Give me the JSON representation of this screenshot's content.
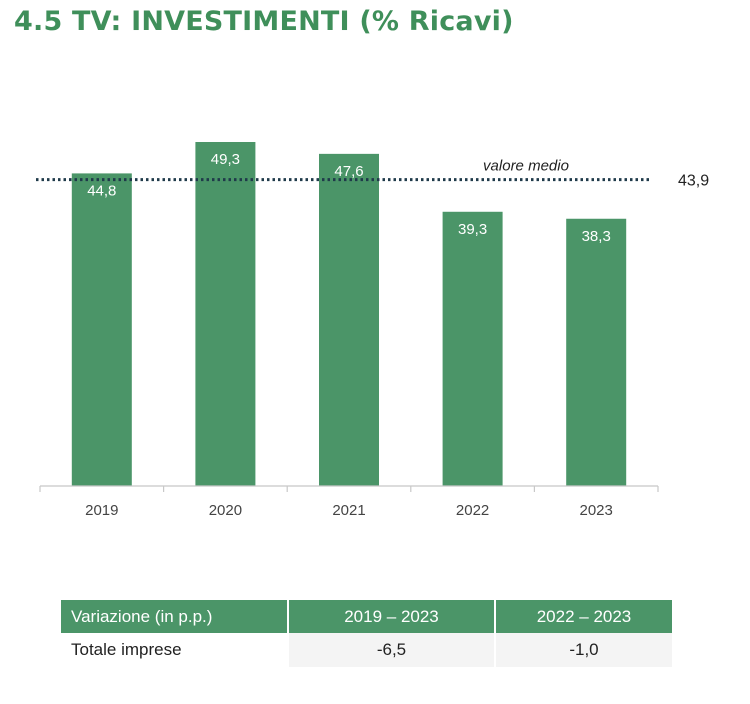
{
  "title": "4.5 TV: INVESTIMENTI (% Ricavi)",
  "colors": {
    "bar": "#4b9568",
    "title": "#3f8f5a",
    "header": "#4b9568"
  },
  "chart_data": {
    "type": "bar",
    "categories": [
      "2019",
      "2020",
      "2021",
      "2022",
      "2023"
    ],
    "values": [
      44.8,
      49.3,
      47.6,
      39.3,
      38.3
    ],
    "value_labels": [
      "44,8",
      "49,3",
      "47,6",
      "39,3",
      "38,3"
    ],
    "reference_line": {
      "label": "valore medio",
      "value": 43.9,
      "value_label": "43,9",
      "style": "dotted"
    },
    "ylim": [
      0,
      50
    ],
    "grid": false,
    "title": "4.5 TV: INVESTIMENTI (% Ricavi)",
    "xlabel": "",
    "ylabel": ""
  },
  "table": {
    "headers": [
      "Variazione (in p.p.)",
      "2019 – 2023",
      "2022 – 2023"
    ],
    "rows": [
      {
        "label": "Totale imprese",
        "values": [
          "-6,5",
          "-1,0"
        ]
      }
    ]
  }
}
